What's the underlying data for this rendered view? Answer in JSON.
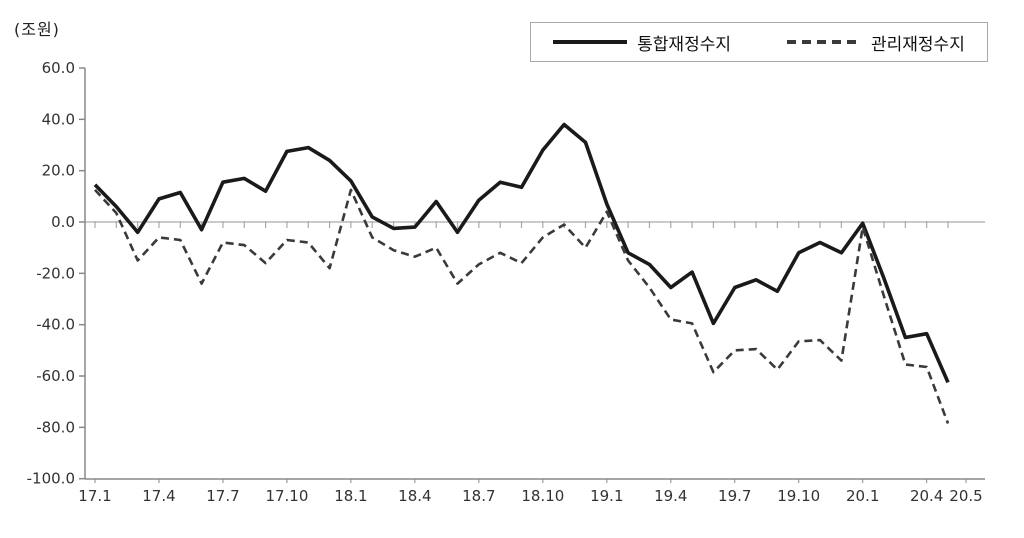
{
  "chart_data": {
    "type": "line",
    "title": "",
    "unit_label": "(조원)",
    "xlabel": "",
    "ylabel": "(조원)",
    "ylim": [
      -100,
      60
    ],
    "grid": "zero-line-only",
    "legend_position": "top-right-box",
    "y_tick_labels": [
      "60.0",
      "40.0",
      "20.0",
      "0.0",
      "-20.0",
      "-40.0",
      "-60.0",
      "-80.0",
      "-100.0"
    ],
    "y_tick_values": [
      60,
      40,
      20,
      0,
      -20,
      -40,
      -60,
      -80,
      -100
    ],
    "x_tick_labels": [
      "17.1",
      "17.4",
      "17.7",
      "17.10",
      "18.1",
      "18.4",
      "18.7",
      "18.10",
      "19.1",
      "19.4",
      "19.7",
      "19.10",
      "20.1",
      "20.4",
      "20.5"
    ],
    "categories": [
      "17.1",
      "17.2",
      "17.3",
      "17.4",
      "17.5",
      "17.6",
      "17.7",
      "17.8",
      "17.9",
      "17.10",
      "17.11",
      "17.12",
      "18.1",
      "18.2",
      "18.3",
      "18.4",
      "18.5",
      "18.6",
      "18.7",
      "18.8",
      "18.9",
      "18.10",
      "18.11",
      "18.12",
      "19.1",
      "19.2",
      "19.3",
      "19.4",
      "19.5",
      "19.6",
      "19.7",
      "19.8",
      "19.9",
      "19.10",
      "19.11",
      "19.12",
      "20.1",
      "20.2",
      "20.3",
      "20.4",
      "20.5"
    ],
    "series": [
      {
        "name": "통합재정수지",
        "style": "solid",
        "color": "#1a1a1a",
        "values": [
          14.5,
          6,
          -4,
          9,
          11.5,
          -3,
          15.5,
          17,
          12,
          27.5,
          29,
          24,
          16,
          2,
          -2.5,
          -2,
          8,
          -4,
          8.5,
          15.5,
          13.5,
          28,
          38,
          31,
          7,
          -12,
          -16.5,
          -25.5,
          -19.5,
          -39.5,
          -25.5,
          -22.5,
          -27,
          -12,
          -8,
          -12,
          -0.5,
          -22,
          -45,
          -43.5,
          -62.5
        ]
      },
      {
        "name": "관리재정수지",
        "style": "dashed",
        "color": "#3a3a3a",
        "values": [
          12.5,
          3.5,
          -15,
          -6,
          -7,
          -24,
          -8,
          -9,
          -16,
          -7,
          -8,
          -18,
          12.5,
          -6,
          -11,
          -13.5,
          -10,
          -24,
          -16.5,
          -12,
          -16,
          -6,
          -1,
          -10,
          4,
          -15,
          -25.5,
          -38,
          -39.5,
          -58.5,
          -50,
          -49.5,
          -57.5,
          -46.5,
          -46,
          -54,
          -2,
          -29,
          -55.5,
          -56.5,
          -78.5
        ]
      }
    ],
    "colors": {
      "axis": "#888888",
      "zero_line": "#aaaaaa",
      "tick_text": "#333333"
    }
  }
}
